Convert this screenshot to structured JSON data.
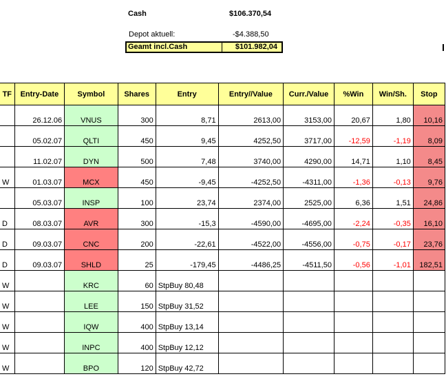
{
  "summary": {
    "cash_label": "Cash",
    "cash_value": "$106.370,54",
    "depot_label": "Depot aktuell:",
    "depot_value": "-$4.388,50",
    "total_label": "Geamt incl.Cash",
    "total_value": "$101.982,04"
  },
  "headers": [
    "TF",
    "Entry-Date",
    "Symbol",
    "Shares",
    "Entry",
    "Entry//Value",
    "Curr./Value",
    "%Win",
    "Win/Sh.",
    "Stop"
  ],
  "rows": [
    {
      "tf": "",
      "date": "26.12.06",
      "symbol": "VNUS",
      "symbol_status": "green",
      "shares": "300",
      "entry": "8,71",
      "entry_value": "2613,00",
      "curr_value": "3153,00",
      "pct_win": "20,67",
      "win_sh": "1,80",
      "stop": "10,16",
      "neg": false
    },
    {
      "tf": "",
      "date": "05.02.07",
      "symbol": "QLTI",
      "symbol_status": "green",
      "shares": "450",
      "entry": "9,45",
      "entry_value": "4252,50",
      "curr_value": "3717,00",
      "pct_win": "-12,59",
      "win_sh": "-1,19",
      "stop": "8,09",
      "neg": true
    },
    {
      "tf": "",
      "date": "11.02.07",
      "symbol": "DYN",
      "symbol_status": "green",
      "shares": "500",
      "entry": "7,48",
      "entry_value": "3740,00",
      "curr_value": "4290,00",
      "pct_win": "14,71",
      "win_sh": "1,10",
      "stop": "8,45",
      "neg": false
    },
    {
      "tf": "W",
      "date": "01.03.07",
      "symbol": "MCX",
      "symbol_status": "red",
      "shares": "450",
      "entry": "-9,45",
      "entry_value": "-4252,50",
      "curr_value": "-4311,00",
      "pct_win": "-1,36",
      "win_sh": "-0,13",
      "stop": "9,76",
      "neg": true
    },
    {
      "tf": "",
      "date": "05.03.07",
      "symbol": "INSP",
      "symbol_status": "green",
      "shares": "100",
      "entry": "23,74",
      "entry_value": "2374,00",
      "curr_value": "2525,00",
      "pct_win": "6,36",
      "win_sh": "1,51",
      "stop": "24,86",
      "neg": false
    },
    {
      "tf": "D",
      "date": "08.03.07",
      "symbol": "AVR",
      "symbol_status": "red",
      "shares": "300",
      "entry": "-15,3",
      "entry_value": "-4590,00",
      "curr_value": "-4695,00",
      "pct_win": "-2,24",
      "win_sh": "-0,35",
      "stop": "16,10",
      "neg": true
    },
    {
      "tf": "D",
      "date": "09.03.07",
      "symbol": "CNC",
      "symbol_status": "red",
      "shares": "200",
      "entry": "-22,61",
      "entry_value": "-4522,00",
      "curr_value": "-4556,00",
      "pct_win": "-0,75",
      "win_sh": "-0,17",
      "stop": "23,76",
      "neg": true
    },
    {
      "tf": "D",
      "date": "09.03.07",
      "symbol": "SHLD",
      "symbol_status": "red",
      "shares": "25",
      "entry": "-179,45",
      "entry_value": "-4486,25",
      "curr_value": "-4511,50",
      "pct_win": "-0,56",
      "win_sh": "-1,01",
      "stop": "182,51",
      "neg": true
    },
    {
      "tf": "W",
      "date": "",
      "symbol": "KRC",
      "symbol_status": "green",
      "shares": "60",
      "entry": "StpBuy 80,48",
      "entry_value": "",
      "curr_value": "",
      "pct_win": "",
      "win_sh": "",
      "stop": "",
      "neg": false
    },
    {
      "tf": "W",
      "date": "",
      "symbol": "LEE",
      "symbol_status": "green",
      "shares": "150",
      "entry": "StpBuy 31,52",
      "entry_value": "",
      "curr_value": "",
      "pct_win": "",
      "win_sh": "",
      "stop": "",
      "neg": false
    },
    {
      "tf": "W",
      "date": "",
      "symbol": "IQW",
      "symbol_status": "green",
      "shares": "400",
      "entry": "StpBuy 13,14",
      "entry_value": "",
      "curr_value": "",
      "pct_win": "",
      "win_sh": "",
      "stop": "",
      "neg": false
    },
    {
      "tf": "W",
      "date": "",
      "symbol": "INPC",
      "symbol_status": "green",
      "shares": "400",
      "entry": "StpBuy 12,12",
      "entry_value": "",
      "curr_value": "",
      "pct_win": "",
      "win_sh": "",
      "stop": "",
      "neg": false
    },
    {
      "tf": "W",
      "date": "",
      "symbol": "BPO",
      "symbol_status": "green",
      "shares": "120",
      "entry": "StpBuy 42,72",
      "entry_value": "",
      "curr_value": "",
      "pct_win": "",
      "win_sh": "",
      "stop": "",
      "neg": false
    }
  ]
}
